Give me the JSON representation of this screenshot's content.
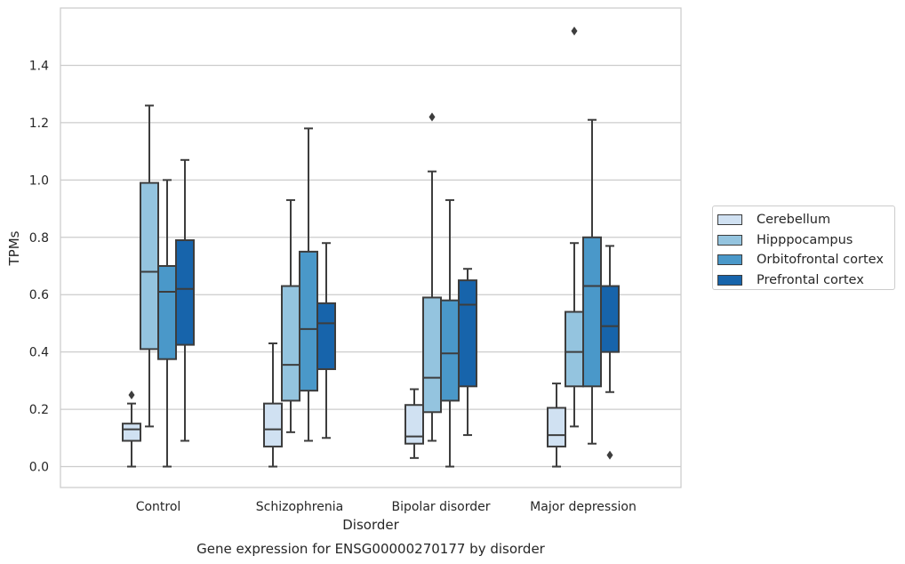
{
  "chart_data": {
    "type": "box",
    "title": "Gene expression for ENSG00000270177 by disorder",
    "xlabel": "Disorder",
    "ylabel": "TPMs",
    "ylim": [
      -0.07,
      1.6
    ],
    "yticks": [
      "0.0",
      "0.2",
      "0.4",
      "0.6",
      "0.8",
      "1.0",
      "1.2",
      "1.4"
    ],
    "grid": true,
    "legend_position": "right",
    "categories": [
      "Control",
      "Schizophrenia",
      "Bipolar disorder",
      "Major depression"
    ],
    "series": [
      {
        "name": "Cerebellum",
        "color": "#d0e1f2",
        "boxes": [
          {
            "whisker_low": 0.0,
            "q1": 0.09,
            "median": 0.13,
            "q3": 0.15,
            "whisker_high": 0.22,
            "outliers": [
              0.25
            ]
          },
          {
            "whisker_low": 0.0,
            "q1": 0.07,
            "median": 0.13,
            "q3": 0.22,
            "whisker_high": 0.43,
            "outliers": []
          },
          {
            "whisker_low": 0.03,
            "q1": 0.08,
            "median": 0.105,
            "q3": 0.215,
            "whisker_high": 0.27,
            "outliers": []
          },
          {
            "whisker_low": 0.0,
            "q1": 0.07,
            "median": 0.11,
            "q3": 0.205,
            "whisker_high": 0.29,
            "outliers": []
          }
        ]
      },
      {
        "name": "Hipppocampus",
        "color": "#94c4df",
        "boxes": [
          {
            "whisker_low": 0.14,
            "q1": 0.41,
            "median": 0.68,
            "q3": 0.99,
            "whisker_high": 1.26,
            "outliers": []
          },
          {
            "whisker_low": 0.12,
            "q1": 0.23,
            "median": 0.355,
            "q3": 0.63,
            "whisker_high": 0.93,
            "outliers": []
          },
          {
            "whisker_low": 0.09,
            "q1": 0.19,
            "median": 0.31,
            "q3": 0.59,
            "whisker_high": 1.03,
            "outliers": [
              1.22
            ]
          },
          {
            "whisker_low": 0.14,
            "q1": 0.28,
            "median": 0.4,
            "q3": 0.54,
            "whisker_high": 0.78,
            "outliers": [
              1.52
            ]
          }
        ]
      },
      {
        "name": "Orbitofrontal cortex",
        "color": "#4a98c9",
        "boxes": [
          {
            "whisker_low": 0.0,
            "q1": 0.375,
            "median": 0.61,
            "q3": 0.7,
            "whisker_high": 1.0,
            "outliers": []
          },
          {
            "whisker_low": 0.09,
            "q1": 0.265,
            "median": 0.48,
            "q3": 0.75,
            "whisker_high": 1.18,
            "outliers": []
          },
          {
            "whisker_low": 0.0,
            "q1": 0.23,
            "median": 0.395,
            "q3": 0.58,
            "whisker_high": 0.93,
            "outliers": []
          },
          {
            "whisker_low": 0.08,
            "q1": 0.28,
            "median": 0.63,
            "q3": 0.8,
            "whisker_high": 1.21,
            "outliers": []
          }
        ]
      },
      {
        "name": "Prefrontal cortex",
        "color": "#1764ab",
        "boxes": [
          {
            "whisker_low": 0.09,
            "q1": 0.425,
            "median": 0.62,
            "q3": 0.79,
            "whisker_high": 1.07,
            "outliers": []
          },
          {
            "whisker_low": 0.1,
            "q1": 0.34,
            "median": 0.5,
            "q3": 0.57,
            "whisker_high": 0.78,
            "outliers": []
          },
          {
            "whisker_low": 0.11,
            "q1": 0.28,
            "median": 0.565,
            "q3": 0.65,
            "whisker_high": 0.69,
            "outliers": []
          },
          {
            "whisker_low": 0.26,
            "q1": 0.4,
            "median": 0.49,
            "q3": 0.63,
            "whisker_high": 0.77,
            "outliers": [
              0.04
            ]
          }
        ]
      }
    ]
  }
}
